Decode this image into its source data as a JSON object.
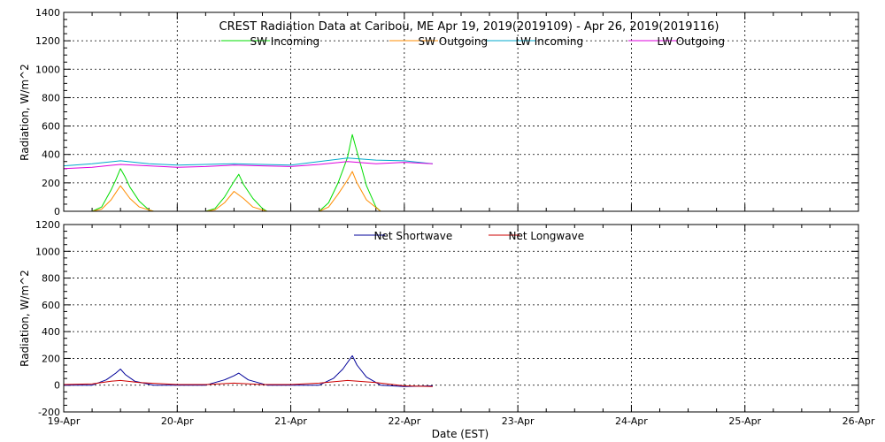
{
  "chart_data": [
    {
      "type": "line",
      "title": "CREST Radiation Data at Caribou, ME   Apr 19, 2019(2019109) - Apr 26, 2019(2019116)",
      "xlabel": "",
      "ylabel": "Radiation, W/m^2",
      "ylim": [
        0,
        1400
      ],
      "yticks": [
        0,
        200,
        400,
        600,
        800,
        1000,
        1200,
        1400
      ],
      "xlim": [
        "2019-04-19",
        "2019-04-26"
      ],
      "xticks": [
        "19-Apr",
        "20-Apr",
        "21-Apr",
        "22-Apr",
        "23-Apr",
        "24-Apr",
        "25-Apr",
        "26-Apr"
      ],
      "grid": true,
      "legend": "top",
      "series": [
        {
          "name": "SW Incoming",
          "color": "#00dd00",
          "x": [
            "2019-04-19T06:00",
            "2019-04-19T08:00",
            "2019-04-19T10:00",
            "2019-04-19T11:00",
            "2019-04-19T12:00",
            "2019-04-19T13:00",
            "2019-04-19T14:00",
            "2019-04-19T16:00",
            "2019-04-19T18:00",
            "2019-04-19T19:00",
            "2019-04-20T06:00",
            "2019-04-20T08:00",
            "2019-04-20T10:00",
            "2019-04-20T12:00",
            "2019-04-20T13:00",
            "2019-04-20T14:00",
            "2019-04-20T16:00",
            "2019-04-20T18:00",
            "2019-04-20T19:00",
            "2019-04-21T06:00",
            "2019-04-21T08:00",
            "2019-04-21T10:00",
            "2019-04-21T11:00",
            "2019-04-21T12:00",
            "2019-04-21T13:00",
            "2019-04-21T14:00",
            "2019-04-21T15:00",
            "2019-04-21T16:00",
            "2019-04-21T18:00",
            "2019-04-21T19:00"
          ],
          "y": [
            0,
            30,
            150,
            220,
            300,
            240,
            170,
            70,
            10,
            0,
            0,
            20,
            100,
            210,
            260,
            190,
            90,
            20,
            0,
            0,
            60,
            200,
            290,
            380,
            540,
            420,
            300,
            180,
            30,
            0
          ]
        },
        {
          "name": "SW Outgoing",
          "color": "#ff8c00",
          "x": [
            "2019-04-19T06:00",
            "2019-04-19T08:00",
            "2019-04-19T10:00",
            "2019-04-19T12:00",
            "2019-04-19T14:00",
            "2019-04-19T16:00",
            "2019-04-19T19:00",
            "2019-04-20T06:00",
            "2019-04-20T08:00",
            "2019-04-20T10:00",
            "2019-04-20T12:00",
            "2019-04-20T14:00",
            "2019-04-20T16:00",
            "2019-04-20T19:00",
            "2019-04-21T06:00",
            "2019-04-21T08:00",
            "2019-04-21T10:00",
            "2019-04-21T12:00",
            "2019-04-21T13:00",
            "2019-04-21T14:00",
            "2019-04-21T16:00",
            "2019-04-21T19:00"
          ],
          "y": [
            0,
            15,
            80,
            180,
            90,
            30,
            0,
            0,
            10,
            60,
            140,
            90,
            30,
            0,
            0,
            30,
            120,
            220,
            280,
            200,
            80,
            0
          ]
        },
        {
          "name": "LW Incoming",
          "color": "#00aacc",
          "x": [
            "2019-04-19T00:00",
            "2019-04-19T06:00",
            "2019-04-19T12:00",
            "2019-04-19T18:00",
            "2019-04-20T00:00",
            "2019-04-20T06:00",
            "2019-04-20T12:00",
            "2019-04-20T18:00",
            "2019-04-21T00:00",
            "2019-04-21T06:00",
            "2019-04-21T12:00",
            "2019-04-21T18:00",
            "2019-04-22T00:00",
            "2019-04-22T06:00"
          ],
          "y": [
            320,
            335,
            355,
            335,
            325,
            330,
            335,
            330,
            325,
            350,
            375,
            360,
            355,
            335
          ]
        },
        {
          "name": "LW Outgoing",
          "color": "#dd00dd",
          "x": [
            "2019-04-19T00:00",
            "2019-04-19T06:00",
            "2019-04-19T12:00",
            "2019-04-19T18:00",
            "2019-04-20T00:00",
            "2019-04-20T06:00",
            "2019-04-20T12:00",
            "2019-04-20T18:00",
            "2019-04-21T00:00",
            "2019-04-21T06:00",
            "2019-04-21T12:00",
            "2019-04-21T18:00",
            "2019-04-22T00:00",
            "2019-04-22T06:00"
          ],
          "y": [
            300,
            310,
            330,
            320,
            310,
            315,
            325,
            320,
            315,
            330,
            350,
            335,
            345,
            335
          ]
        }
      ]
    },
    {
      "type": "line",
      "title": "",
      "xlabel": "Date (EST)",
      "ylabel": "Radiation, W/m^2",
      "ylim": [
        -200,
        1200
      ],
      "yticks": [
        -200,
        0,
        200,
        400,
        600,
        800,
        1000,
        1200
      ],
      "xlim": [
        "2019-04-19",
        "2019-04-26"
      ],
      "xticks": [
        "19-Apr",
        "20-Apr",
        "21-Apr",
        "22-Apr",
        "23-Apr",
        "24-Apr",
        "25-Apr",
        "26-Apr"
      ],
      "grid": true,
      "legend": "top",
      "series": [
        {
          "name": "Net Shortwave",
          "color": "#000099",
          "x": [
            "2019-04-19T00:00",
            "2019-04-19T06:00",
            "2019-04-19T09:00",
            "2019-04-19T11:00",
            "2019-04-19T12:00",
            "2019-04-19T13:00",
            "2019-04-19T15:00",
            "2019-04-19T19:00",
            "2019-04-20T00:00",
            "2019-04-20T06:00",
            "2019-04-20T10:00",
            "2019-04-20T12:00",
            "2019-04-20T13:00",
            "2019-04-20T15:00",
            "2019-04-20T19:00",
            "2019-04-21T00:00",
            "2019-04-21T06:00",
            "2019-04-21T09:00",
            "2019-04-21T11:00",
            "2019-04-21T12:00",
            "2019-04-21T13:00",
            "2019-04-21T14:00",
            "2019-04-21T16:00",
            "2019-04-21T19:00",
            "2019-04-22T00:00",
            "2019-04-22T06:00"
          ],
          "y": [
            0,
            0,
            40,
            90,
            120,
            80,
            30,
            0,
            0,
            0,
            40,
            70,
            90,
            40,
            0,
            0,
            0,
            50,
            120,
            170,
            220,
            150,
            60,
            0,
            -10,
            -5
          ]
        },
        {
          "name": "Net Longwave",
          "color": "#cc0000",
          "x": [
            "2019-04-19T00:00",
            "2019-04-19T06:00",
            "2019-04-19T10:00",
            "2019-04-19T12:00",
            "2019-04-19T16:00",
            "2019-04-20T00:00",
            "2019-04-20T06:00",
            "2019-04-20T12:00",
            "2019-04-20T18:00",
            "2019-04-21T00:00",
            "2019-04-21T06:00",
            "2019-04-21T12:00",
            "2019-04-21T18:00",
            "2019-04-22T00:00",
            "2019-04-22T06:00"
          ],
          "y": [
            5,
            10,
            30,
            35,
            20,
            5,
            5,
            15,
            5,
            5,
            15,
            35,
            20,
            -5,
            -10
          ]
        }
      ]
    }
  ]
}
